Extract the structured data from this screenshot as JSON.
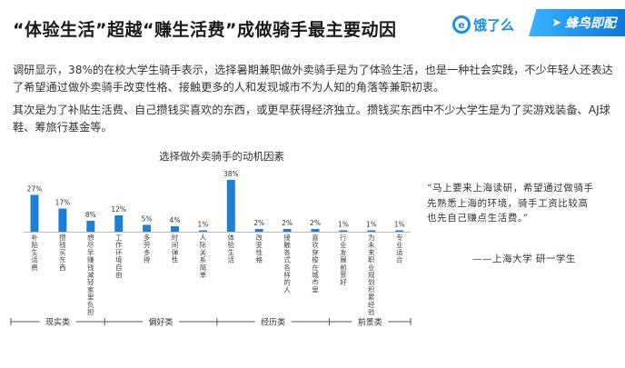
{
  "header": {
    "title": "“体验生活”超越“赚生活费”成做骑手最主要动因",
    "logo_eleme": "饿了么",
    "logo_fengniao": "蜂鸟即配"
  },
  "paragraphs": [
    "调研显示，38%的在校大学生骑手表示，选择暑期兼职做外卖骑手是为了体验生活，也是一种社会实践，不少年轻人还表达了希望通过做外卖骑手改变性格、接触更多的人和发现城市不为人知的角落等兼职初衷。",
    "其次是为了补贴生活费、自己攒钱买喜欢的东西，或更早获得经济独立。攒钱买东西中不少大学生是为了买游戏装备、AJ球鞋、筹旅行基金等。"
  ],
  "quote": {
    "text": "“马上要来上海读研，希望通过做骑手先熟悉上海的环境，骑手工资比较高也先自己赚点生活费。”",
    "source": "——上海大学 研一学生"
  },
  "chart_data": {
    "type": "bar",
    "title": "选择做外卖骑手的动机因素",
    "categories": [
      "补贴生活费",
      "攒钱买东西",
      "想尽早赚钱减轻家里负担",
      "工作环境自由",
      "多劳多得",
      "时间弹性",
      "人际关系简单",
      "体验生活",
      "改变性格",
      "接触各式各样的人",
      "喜欢穿梭在城市里",
      "行业发展前景好",
      "为未来职业规划积累经验",
      "专业适合"
    ],
    "values": [
      27,
      17,
      8,
      12,
      5,
      4,
      1,
      38,
      2,
      2,
      2,
      1,
      1,
      1
    ],
    "value_labels": [
      "27%",
      "17%",
      "8%",
      "12%",
      "5%",
      "4%",
      "1%",
      "38%",
      "2%",
      "2%",
      "2%",
      "1%",
      "1%",
      "1%"
    ],
    "ylim": [
      0,
      40
    ],
    "bar_color": "#1f7fd4",
    "groups": [
      {
        "name": "现实类",
        "start": 0,
        "end": 2
      },
      {
        "name": "偏好类",
        "start": 3,
        "end": 6
      },
      {
        "name": "经历类",
        "start": 7,
        "end": 10
      },
      {
        "name": "前景类",
        "start": 11,
        "end": 13
      }
    ],
    "grid": false
  }
}
